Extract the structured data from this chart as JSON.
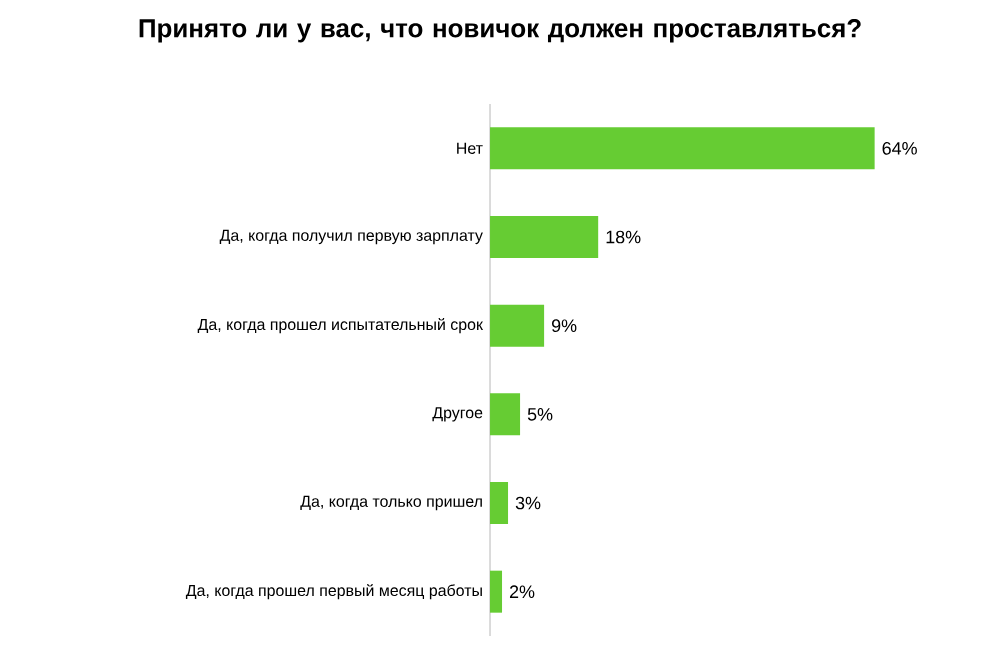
{
  "chart_data": {
    "type": "bar",
    "orientation": "horizontal",
    "title": "Принято ли у вас, что новичок должен проставляться?",
    "categories": [
      "Нет",
      "Да, когда получил первую зарплату",
      "Да, когда прошел испытательный срок",
      "Другое",
      "Да, когда только пришел",
      "Да, когда прошел первый месяц работы"
    ],
    "values": [
      64,
      18,
      9,
      5,
      3,
      2
    ],
    "value_labels": [
      "64%",
      "18%",
      "9%",
      "5%",
      "3%",
      "2%"
    ],
    "color": "#66cc33"
  }
}
